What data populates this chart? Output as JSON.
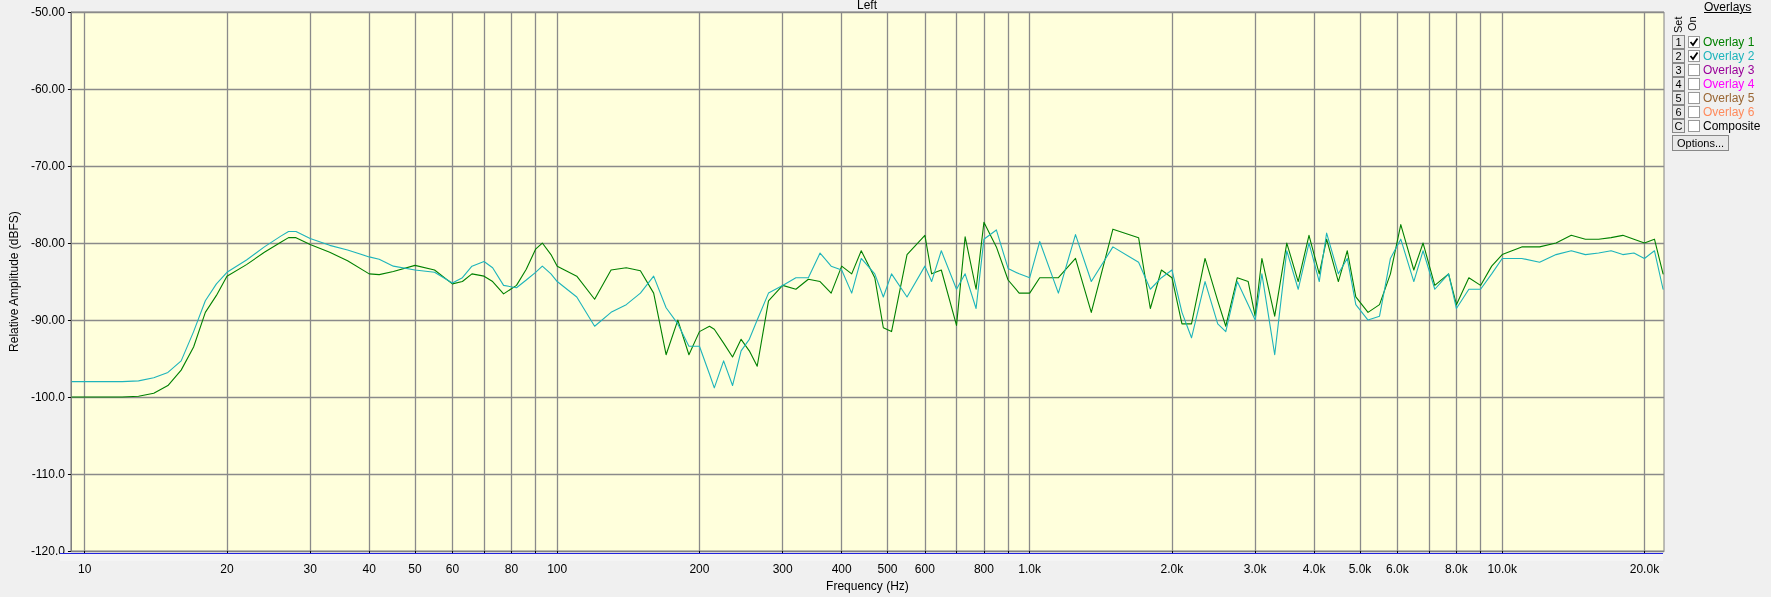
{
  "chart_data": {
    "type": "line",
    "title": "Left",
    "xlabel": "Frequency (Hz)",
    "ylabel": "Relative Amplitude (dBFS)",
    "log": "x",
    "xlim": [
      9.35,
      22000
    ],
    "ylim": [
      -120,
      -50
    ],
    "xticks": [
      10,
      20,
      30,
      40,
      50,
      60,
      {
        "value": 70,
        "label": null
      },
      80,
      {
        "value": 90,
        "label": null
      },
      100,
      200,
      300,
      400,
      500,
      600,
      {
        "value": 700,
        "label": null
      },
      800,
      {
        "value": 900,
        "label": null
      },
      {
        "value": 1000,
        "label": "1.0k"
      },
      {
        "value": 2000,
        "label": "2.0k"
      },
      {
        "value": 3000,
        "label": "3.0k"
      },
      {
        "value": 4000,
        "label": "4.0k"
      },
      {
        "value": 5000,
        "label": "5.0k"
      },
      {
        "value": 6000,
        "label": "6.0k"
      },
      {
        "value": 7000,
        "label": null
      },
      {
        "value": 8000,
        "label": "8.0k"
      },
      {
        "value": 9000,
        "label": null
      },
      {
        "value": 10000,
        "label": "10.0k"
      },
      {
        "value": 20000,
        "label": "20.0k"
      }
    ],
    "yticks": [
      {
        "value": -120,
        "label": "-120.0"
      },
      {
        "value": -110,
        "label": "-110.0"
      },
      {
        "value": -100,
        "label": "-100.0"
      },
      {
        "value": -90,
        "label": "-90.00"
      },
      {
        "value": -80,
        "label": "-80.00"
      },
      {
        "value": -70,
        "label": "-70.00"
      },
      {
        "value": -60,
        "label": "-60.00"
      },
      {
        "value": -50,
        "label": "-50.00"
      }
    ],
    "grid": true,
    "legend": "right",
    "marker": "none",
    "line_style": "solid",
    "annotations": [
      "Overlays",
      "Set",
      "On",
      "Options...",
      "1",
      "2",
      "3",
      "4",
      "5",
      "6",
      "C",
      "Overlay 3",
      "Overlay 4",
      "Overlay 5",
      "Overlay 6",
      "Composite"
    ],
    "x": [
      9.4,
      10,
      12,
      13,
      14,
      15,
      16,
      17,
      18,
      19,
      20,
      22,
      24,
      26,
      27,
      28,
      30,
      33,
      36,
      40,
      42,
      45,
      50,
      55,
      60,
      63,
      66,
      70,
      73,
      77,
      82,
      86,
      90,
      93,
      97,
      100,
      110,
      120,
      130,
      140,
      150,
      160,
      170,
      180,
      190,
      200,
      210,
      215,
      225,
      235,
      245,
      255,
      265,
      280,
      300,
      320,
      340,
      360,
      380,
      400,
      420,
      440,
      470,
      490,
      510,
      550,
      600,
      620,
      650,
      700,
      730,
      770,
      800,
      850,
      900,
      950,
      1000,
      1050,
      1150,
      1250,
      1350,
      1500,
      1700,
      1800,
      1900,
      2000,
      2100,
      2200,
      2350,
      2500,
      2600,
      2750,
      2900,
      3000,
      3100,
      3300,
      3500,
      3700,
      3900,
      4100,
      4250,
      4500,
      4700,
      4900,
      5200,
      5500,
      5800,
      6100,
      6500,
      6800,
      7200,
      7700,
      8000,
      8500,
      9000,
      9500,
      10000,
      11000,
      12000,
      13000,
      14000,
      15000,
      16000,
      17000,
      18000,
      19000,
      20000,
      21000,
      21900
    ],
    "series": [
      {
        "name": "Overlay 1",
        "color": "#008000",
        "values": [
          -100,
          -100,
          -100,
          -99.9,
          -99.5,
          -98.5,
          -96.5,
          -93.5,
          -89,
          -86.8,
          -84.3,
          -82.8,
          -81.2,
          -79.9,
          -79.3,
          -79.3,
          -80.2,
          -81.2,
          -82.3,
          -84,
          -84.1,
          -83.7,
          -82.9,
          -83.5,
          -85.3,
          -85,
          -84,
          -84.3,
          -85,
          -86.6,
          -85.5,
          -83.4,
          -80.8,
          -80,
          -81.5,
          -83,
          -84.3,
          -87.3,
          -83.5,
          -83.2,
          -83.6,
          -86.5,
          -94.5,
          -90,
          -94.5,
          -91.5,
          -90.8,
          -91.2,
          -93,
          -94.8,
          -92.5,
          -94,
          -96,
          -87.5,
          -85.5,
          -86,
          -84.7,
          -85,
          -86.5,
          -83,
          -84,
          -81,
          -84.5,
          -91,
          -91.5,
          -81.5,
          -79,
          -84,
          -83.5,
          -90.7,
          -79.2,
          -86,
          -77.3,
          -80.5,
          -84.8,
          -86.5,
          -86.5,
          -84.5,
          -84.5,
          -82,
          -89,
          -78.2,
          -79.3,
          -88.5,
          -83.5,
          -84.5,
          -90.5,
          -90.5,
          -82,
          -87.5,
          -90.8,
          -84.5,
          -85,
          -89.5,
          -82,
          -89.5,
          -80,
          -85,
          -79,
          -84,
          -79.5,
          -85,
          -81,
          -87,
          -89,
          -88,
          -84,
          -77.6,
          -83.5,
          -80,
          -85.5,
          -84,
          -88,
          -84.5,
          -85.5,
          -83,
          -81.5,
          -80.5,
          -80.5,
          -80,
          -79,
          -79.5,
          -79.5,
          -79.3,
          -79,
          -79.5,
          -80,
          -79.5,
          -84
        ]
      },
      {
        "name": "Overlay 2",
        "color": "#1db4bb",
        "values": [
          -98,
          -98,
          -98,
          -97.9,
          -97.5,
          -96.8,
          -95.3,
          -91.5,
          -87.5,
          -85.3,
          -83.8,
          -82.2,
          -80.5,
          -79.1,
          -78.5,
          -78.5,
          -79.4,
          -80.3,
          -80.9,
          -81.8,
          -82.1,
          -83,
          -83.5,
          -83.8,
          -85.2,
          -84.5,
          -83,
          -82.4,
          -83.2,
          -85.5,
          -85.8,
          -84.8,
          -83.8,
          -83,
          -84,
          -85,
          -87,
          -90.8,
          -89,
          -88,
          -86.5,
          -84.3,
          -88.4,
          -90.5,
          -93.4,
          -93.4,
          -97,
          -98.8,
          -95.3,
          -98.5,
          -94,
          -92.5,
          -90,
          -86.5,
          -85.5,
          -84.5,
          -84.5,
          -81.3,
          -83,
          -83.5,
          -86.5,
          -82,
          -84,
          -87,
          -84,
          -87,
          -83,
          -85,
          -81,
          -86,
          -84,
          -88.5,
          -79.5,
          -78.3,
          -83.3,
          -84,
          -84.5,
          -79.8,
          -86.5,
          -78.9,
          -85,
          -80.5,
          -82.5,
          -86,
          -84.5,
          -83.5,
          -89,
          -92.3,
          -85,
          -90.5,
          -91.5,
          -85,
          -88,
          -90,
          -84,
          -94.5,
          -81,
          -86,
          -80,
          -85,
          -78.7,
          -84,
          -82,
          -88,
          -90,
          -89.5,
          -82,
          -79.5,
          -85,
          -81,
          -86,
          -84,
          -88.5,
          -86,
          -86,
          -84,
          -82,
          -82,
          -82.5,
          -81.5,
          -81,
          -81.5,
          -81.3,
          -81,
          -81.5,
          -81.3,
          -82,
          -81,
          -86
        ]
      }
    ]
  }
}
